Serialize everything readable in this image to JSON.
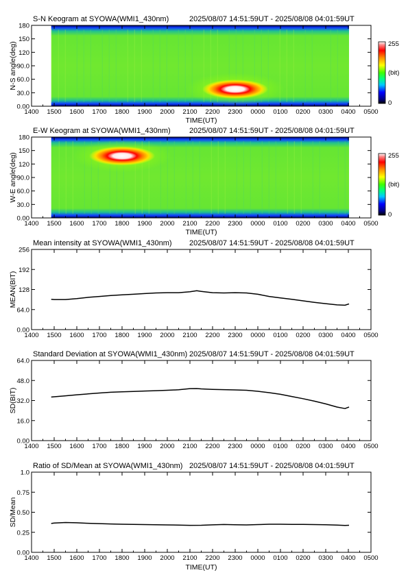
{
  "figure": {
    "station": "SYOWA",
    "camera": "WMI1_430nm"
  },
  "chart_data": [
    {
      "type": "heatmap",
      "id": "sn",
      "title": "S-N Keogram at SYOWA(WMI1_430nm)",
      "time_range": "2025/08/07 14:51:59UT - 2025/08/08 04:01:59UT",
      "xlabel": "TIME(UT)",
      "ylabel": "N-S angle(deg)",
      "x_ticks": [
        "1400",
        "1500",
        "1600",
        "1700",
        "1800",
        "1900",
        "2000",
        "2100",
        "2200",
        "2300",
        "0000",
        "0100",
        "0200",
        "0300",
        "0400",
        "0500"
      ],
      "xlim_hours_ut": [
        14,
        29
      ],
      "data_x_range_hours_ut": [
        14.87,
        28.03
      ],
      "y_ticks": [
        "0.00",
        "30.0",
        "60.0",
        "90.0",
        "120",
        "150",
        "180"
      ],
      "ylim": [
        0,
        180
      ],
      "colorbar": {
        "labels": [
          "255",
          "(bit)",
          "0"
        ],
        "range": [
          0,
          255
        ]
      },
      "background_level_bit": 100,
      "features": [
        {
          "label": "bright aurora",
          "x_center_hours_ut": 23.0,
          "y_center_deg": 38,
          "peak_bit": 255
        }
      ]
    },
    {
      "type": "heatmap",
      "id": "ew",
      "title": "E-W Keogram at SYOWA(WMI1_430nm)",
      "time_range": "2025/08/07 14:51:59UT - 2025/08/08 04:01:59UT",
      "xlabel": "TIME(UT)",
      "ylabel": "W-E angle(deg)",
      "x_ticks": [
        "1400",
        "1500",
        "1600",
        "1700",
        "1800",
        "1900",
        "2000",
        "2100",
        "2200",
        "2300",
        "0000",
        "0100",
        "0200",
        "0300",
        "0400",
        "0500"
      ],
      "xlim_hours_ut": [
        14,
        29
      ],
      "data_x_range_hours_ut": [
        14.87,
        28.03
      ],
      "y_ticks": [
        "0.00",
        "30.0",
        "60.0",
        "90.0",
        "120",
        "150",
        "180"
      ],
      "ylim": [
        0,
        180
      ],
      "colorbar": {
        "labels": [
          "255",
          "(bit)",
          "0"
        ],
        "range": [
          0,
          255
        ]
      },
      "background_level_bit": 100,
      "features": [
        {
          "label": "bright aurora",
          "x_center_hours_ut": 18.0,
          "y_center_deg": 138,
          "peak_bit": 255
        }
      ]
    },
    {
      "type": "line",
      "id": "mean",
      "title": "Mean intensity at SYOWA(WMI1_430nm)",
      "time_range": "2025/08/07 14:51:59UT - 2025/08/08 04:01:59UT",
      "xlabel": "",
      "ylabel": "MEAN(BIT)",
      "x_ticks": [
        "1400",
        "1500",
        "1600",
        "1700",
        "1800",
        "1900",
        "2000",
        "2100",
        "2200",
        "2300",
        "0000",
        "0100",
        "0200",
        "0300",
        "0400",
        "0500"
      ],
      "xlim_hours_ut": [
        14,
        29
      ],
      "y_ticks": [
        "0.00",
        "64.0",
        "128",
        "192",
        "256"
      ],
      "ylim": [
        0,
        256
      ],
      "series": [
        {
          "x_hours_ut": [
            14.87,
            15.0,
            15.5,
            16.0,
            16.5,
            17.0,
            17.5,
            18.0,
            18.5,
            19.0,
            19.5,
            20.0,
            20.5,
            21.0,
            21.3,
            21.5,
            22.0,
            22.5,
            23.0,
            23.5,
            24.0,
            24.5,
            25.0,
            25.5,
            26.0,
            26.5,
            27.0,
            27.5,
            27.85,
            28.03
          ],
          "values": [
            97,
            96,
            96,
            99,
            103,
            106,
            109,
            111,
            113,
            115,
            117,
            118,
            118,
            121,
            124,
            122,
            118,
            117,
            118,
            117,
            113,
            106,
            101,
            97,
            92,
            87,
            83,
            79,
            78,
            82
          ]
        }
      ]
    },
    {
      "type": "line",
      "id": "sd",
      "title": "Standard Deviation at SYOWA(WMI1_430nm)",
      "time_range": "2025/08/07 14:51:59UT - 2025/08/08 04:01:59UT",
      "xlabel": "",
      "ylabel": "SD(BIT)",
      "x_ticks": [
        "1400",
        "1500",
        "1600",
        "1700",
        "1800",
        "1900",
        "2000",
        "2100",
        "2200",
        "2300",
        "0000",
        "0100",
        "0200",
        "0300",
        "0400",
        "0500"
      ],
      "xlim_hours_ut": [
        14,
        29
      ],
      "y_ticks": [
        "0.00",
        "16.0",
        "32.0",
        "48.0",
        "64.0"
      ],
      "ylim": [
        0,
        64
      ],
      "series": [
        {
          "x_hours_ut": [
            14.87,
            15.0,
            15.5,
            16.0,
            16.5,
            17.0,
            17.5,
            18.0,
            18.5,
            19.0,
            19.5,
            20.0,
            20.5,
            21.0,
            21.3,
            21.5,
            22.0,
            22.5,
            23.0,
            23.5,
            24.0,
            24.5,
            25.0,
            25.5,
            26.0,
            26.5,
            27.0,
            27.5,
            27.85,
            28.03
          ],
          "values": [
            34.8,
            35.0,
            35.8,
            36.6,
            37.3,
            38.0,
            38.6,
            39.0,
            39.3,
            39.6,
            39.9,
            40.2,
            40.6,
            41.5,
            41.6,
            41.3,
            40.9,
            40.7,
            40.5,
            40.2,
            39.4,
            38.3,
            37.0,
            35.2,
            33.5,
            31.5,
            29.3,
            26.8,
            25.6,
            26.8
          ]
        }
      ]
    },
    {
      "type": "line",
      "id": "ratio",
      "title": "Ratio of SD/Mean at SYOWA(WMI1_430nm)",
      "time_range": "2025/08/07 14:51:59UT - 2025/08/08 04:01:59UT",
      "xlabel": "TIME(UT)",
      "ylabel": "SD/Mean",
      "x_ticks": [
        "1400",
        "1500",
        "1600",
        "1700",
        "1800",
        "1900",
        "2000",
        "2100",
        "2200",
        "2300",
        "0000",
        "0100",
        "0200",
        "0300",
        "0400",
        "0500"
      ],
      "xlim_hours_ut": [
        14,
        29
      ],
      "y_ticks": [
        "0.00",
        "0.25",
        "0.50",
        "0.75",
        "1.0"
      ],
      "ylim": [
        0,
        1.0
      ],
      "series": [
        {
          "x_hours_ut": [
            14.87,
            15.0,
            15.5,
            16.0,
            16.5,
            17.0,
            17.5,
            18.0,
            18.5,
            19.0,
            19.5,
            20.0,
            20.5,
            21.0,
            21.5,
            22.0,
            22.5,
            23.0,
            23.5,
            24.0,
            24.5,
            25.0,
            25.5,
            26.0,
            26.5,
            27.0,
            27.5,
            27.85,
            28.03
          ],
          "values": [
            0.36,
            0.365,
            0.372,
            0.368,
            0.362,
            0.358,
            0.354,
            0.35,
            0.348,
            0.346,
            0.344,
            0.342,
            0.34,
            0.337,
            0.338,
            0.343,
            0.347,
            0.344,
            0.342,
            0.346,
            0.35,
            0.35,
            0.348,
            0.348,
            0.346,
            0.344,
            0.34,
            0.336,
            0.338
          ]
        }
      ]
    }
  ]
}
